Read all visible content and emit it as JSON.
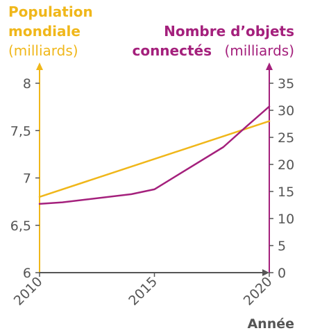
{
  "colors": {
    "population": "#F0B71A",
    "objects": "#A4207C",
    "axis": "#555555"
  },
  "chart_data": {
    "type": "line",
    "x": [
      2010,
      2014,
      2015,
      2016,
      2018,
      2020
    ],
    "xticks": [
      "2010",
      "2015",
      "2020"
    ],
    "xlabel": "Année",
    "xlim": [
      2010,
      2020
    ],
    "left_axis": {
      "title_line1": "Population",
      "title_line2": "mondiale",
      "unit": "(milliards)",
      "ylim": [
        6,
        8
      ],
      "ticks": [
        "6",
        "6,5",
        "7",
        "7,5",
        "8"
      ]
    },
    "right_axis": {
      "title_line1": "Nombre d’objets",
      "title_line2": "connectés",
      "unit": "(milliards)",
      "ylim": [
        0,
        35
      ],
      "ticks": [
        "0",
        "5",
        "10",
        "15",
        "20",
        "25",
        "30",
        "35"
      ]
    },
    "series": [
      {
        "name": "Population mondiale",
        "axis": "left",
        "x": [
          2010,
          2020
        ],
        "values": [
          6.8,
          7.6
        ]
      },
      {
        "name": "Nombre d’objets connectés",
        "axis": "right",
        "x": [
          2010,
          2011,
          2014,
          2015,
          2016,
          2018,
          2019,
          2020
        ],
        "values": [
          12.7,
          13.0,
          14.5,
          15.4,
          18.0,
          23.2,
          27.0,
          30.7
        ]
      }
    ]
  }
}
